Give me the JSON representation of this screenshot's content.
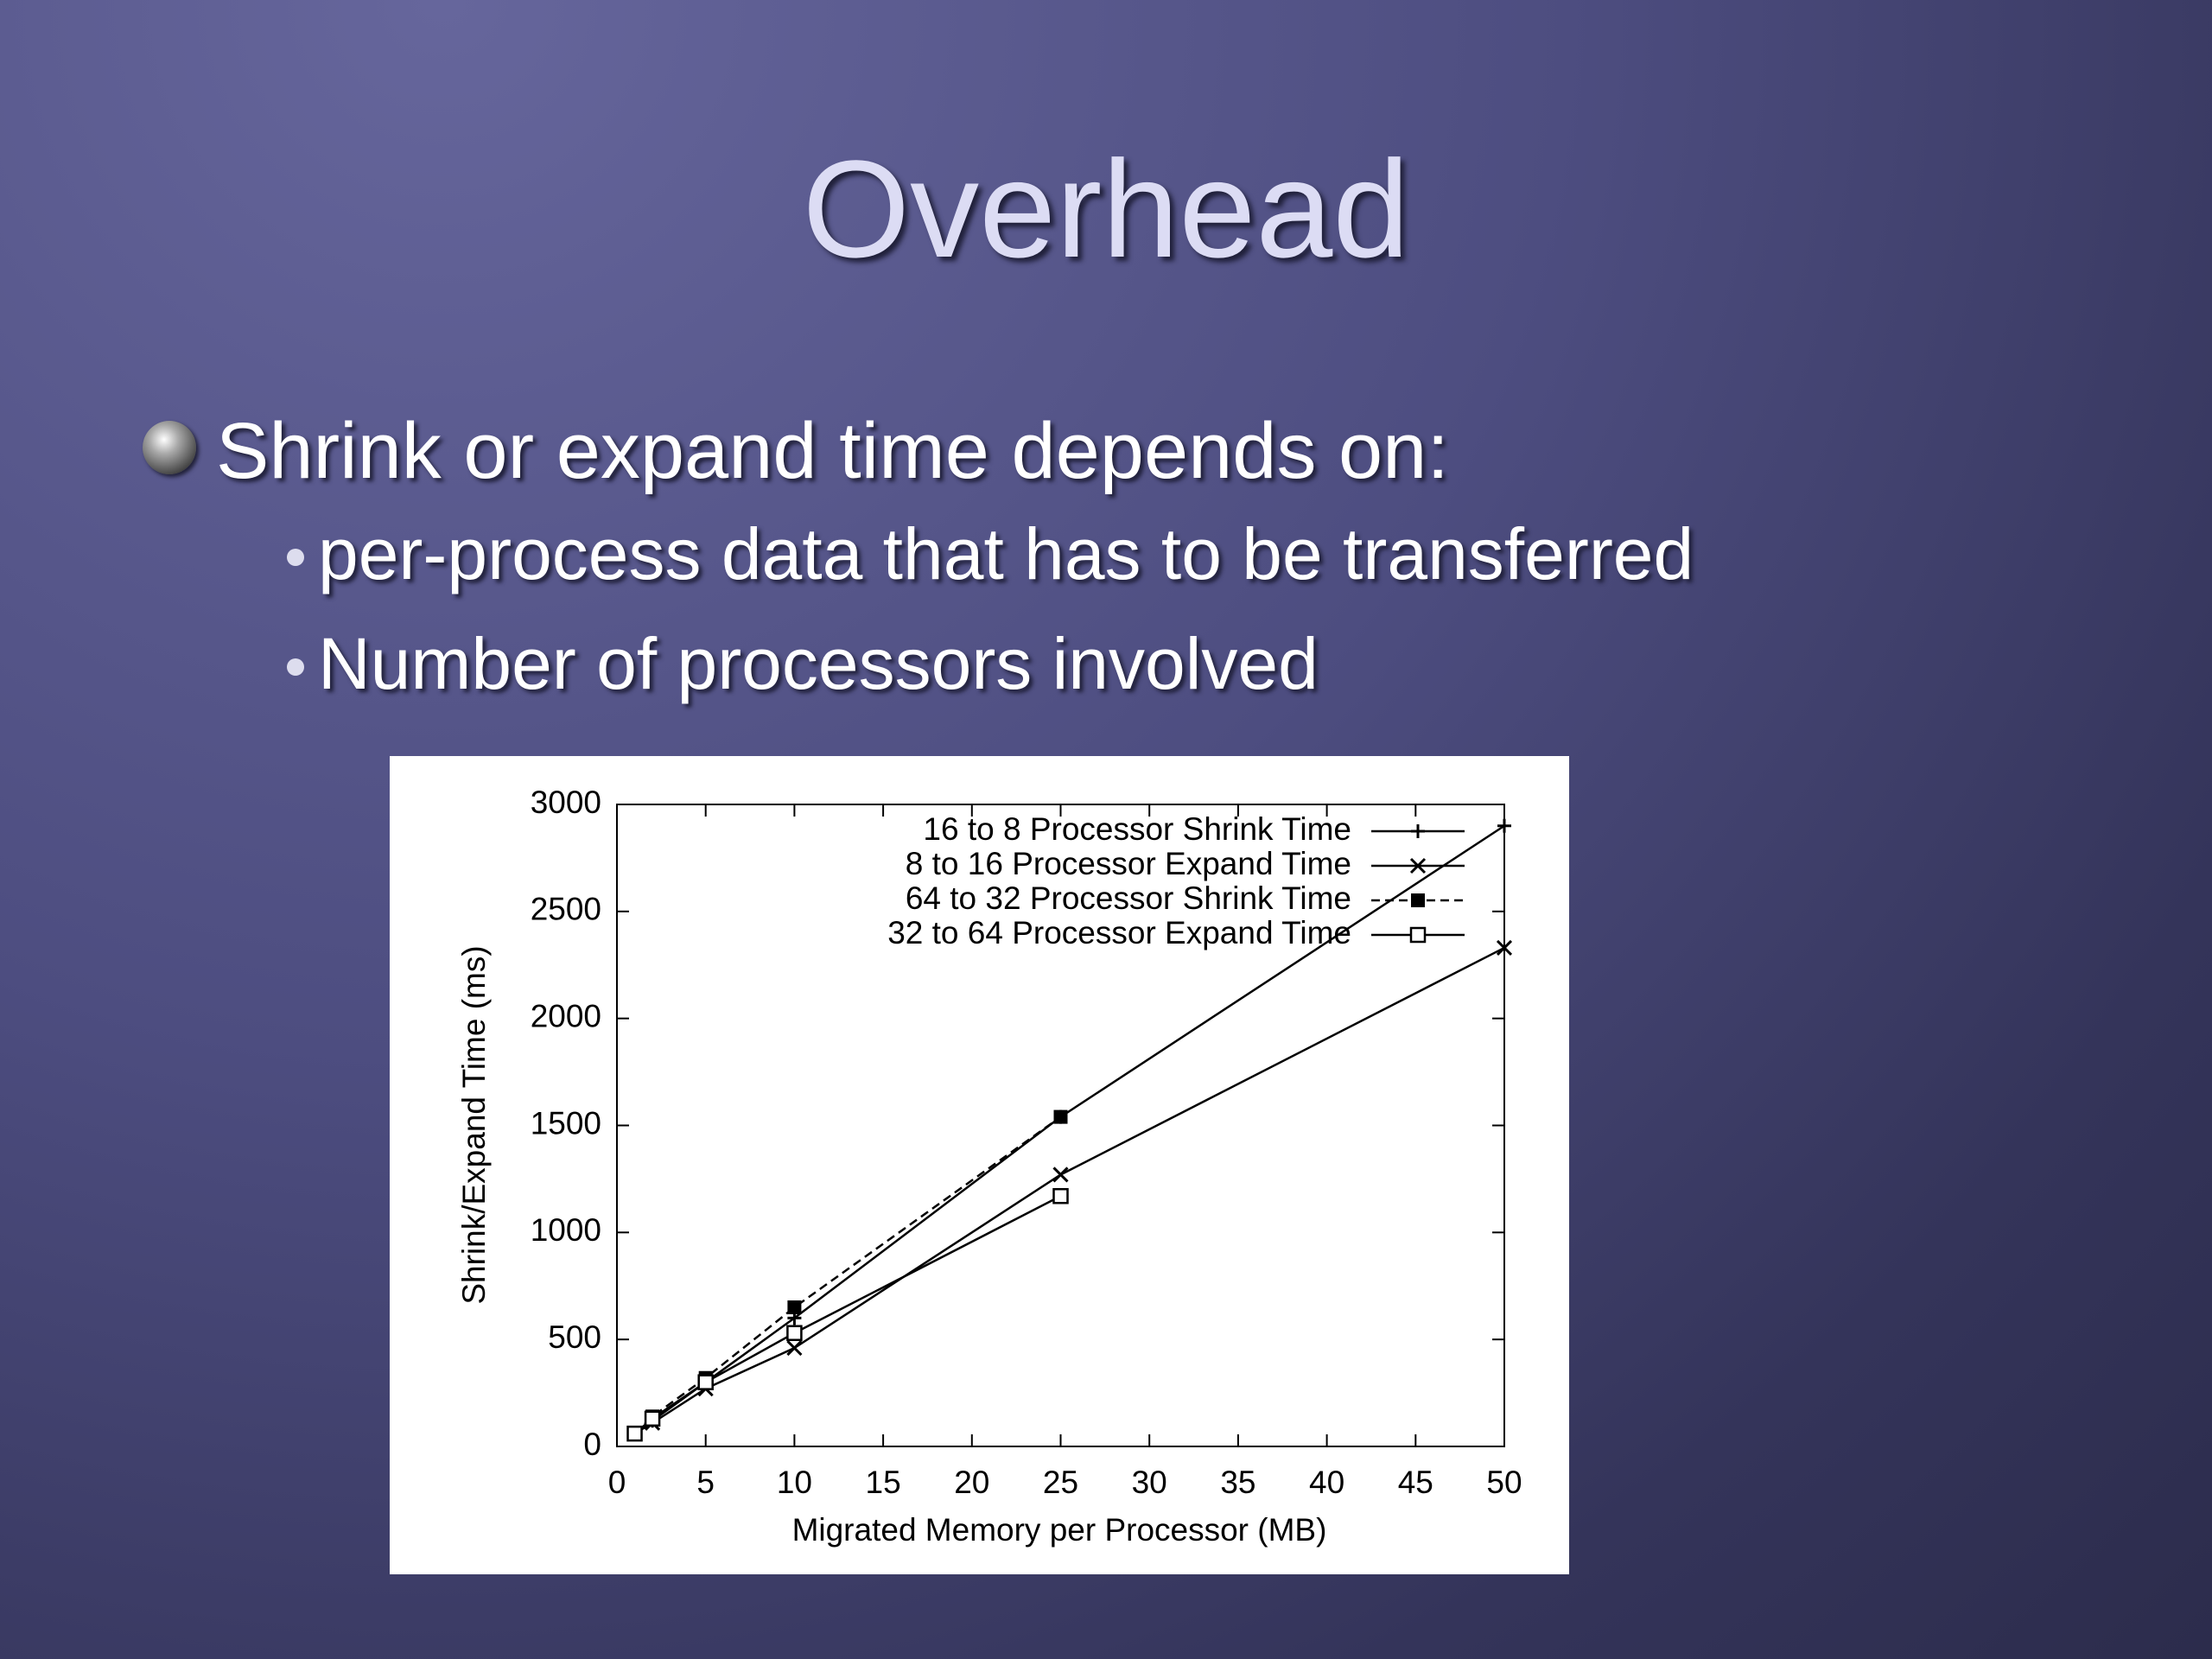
{
  "title": "Overhead",
  "bullets": [
    "Shrink or expand time depends on:"
  ],
  "sub_bullets": [
    "per-process data that has to be transferred",
    "Number of processors involved"
  ],
  "chart_data": {
    "type": "line",
    "xlabel": "Migrated Memory per Processor (MB)",
    "ylabel": "Shrink/Expand Time (ms)",
    "xlim": [
      0,
      50
    ],
    "xticks": [
      0,
      5,
      10,
      15,
      20,
      25,
      30,
      35,
      40,
      45,
      50
    ],
    "ylim": [
      0,
      3000
    ],
    "yticks": [
      0,
      500,
      1000,
      1500,
      2000,
      2500,
      3000
    ],
    "legend": "top-right",
    "series": [
      {
        "name": "16 to 8 Processor Shrink Time",
        "color": "#000000",
        "marker": "plus",
        "dash": false,
        "x": [
          1,
          2,
          5,
          10,
          25,
          50
        ],
        "values": [
          60,
          120,
          300,
          600,
          1540,
          2900
        ]
      },
      {
        "name": "8 to 16 Processor Expand Time",
        "color": "#000000",
        "marker": "cross",
        "dash": false,
        "x": [
          1,
          2,
          5,
          10,
          25,
          50
        ],
        "values": [
          60,
          110,
          270,
          460,
          1270,
          2330
        ]
      },
      {
        "name": "64 to 32 Processor Shrink Time",
        "color": "#000000",
        "marker": "filled-square",
        "dash": true,
        "x": [
          1,
          2,
          5,
          10,
          25
        ],
        "values": [
          60,
          140,
          320,
          650,
          1540
        ]
      },
      {
        "name": "32 to 64 Processor  Expand Time",
        "color": "#000000",
        "marker": "open-square",
        "dash": false,
        "x": [
          1,
          2,
          5,
          10,
          25
        ],
        "values": [
          60,
          130,
          300,
          530,
          1170
        ]
      }
    ]
  }
}
